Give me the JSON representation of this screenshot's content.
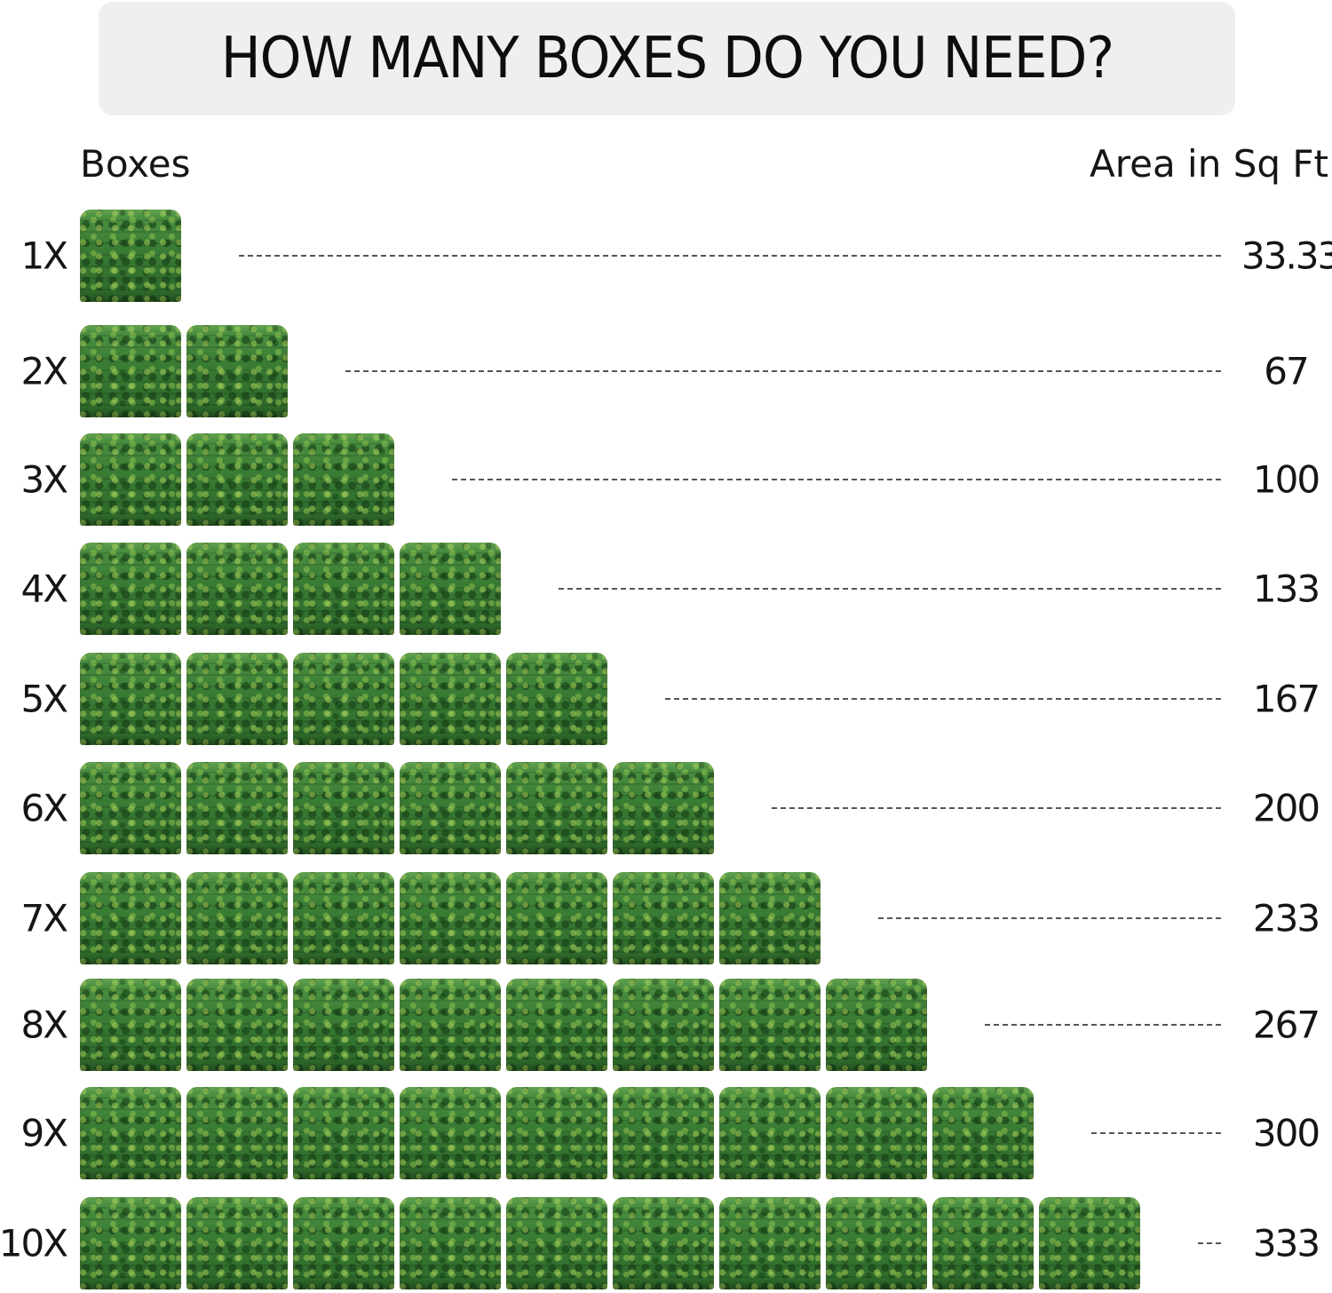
{
  "title": "HOW MANY BOXES DO YOU NEED?",
  "headers": {
    "boxes": "Boxes",
    "area": "Area in Sq Ft"
  },
  "box_icon": "artificial-grass-panel-box",
  "box_color": "#2f6e2c",
  "rows": [
    {
      "label": "1X",
      "count": 1,
      "area": "33.33"
    },
    {
      "label": "2X",
      "count": 2,
      "area": "67"
    },
    {
      "label": "3X",
      "count": 3,
      "area": "100"
    },
    {
      "label": "4X",
      "count": 4,
      "area": "133"
    },
    {
      "label": "5X",
      "count": 5,
      "area": "167"
    },
    {
      "label": "6X",
      "count": 6,
      "area": "200"
    },
    {
      "label": "7X",
      "count": 7,
      "area": "233"
    },
    {
      "label": "8X",
      "count": 8,
      "area": "267"
    },
    {
      "label": "9X",
      "count": 9,
      "area": "300"
    },
    {
      "label": "10X",
      "count": 10,
      "area": "333"
    }
  ]
}
